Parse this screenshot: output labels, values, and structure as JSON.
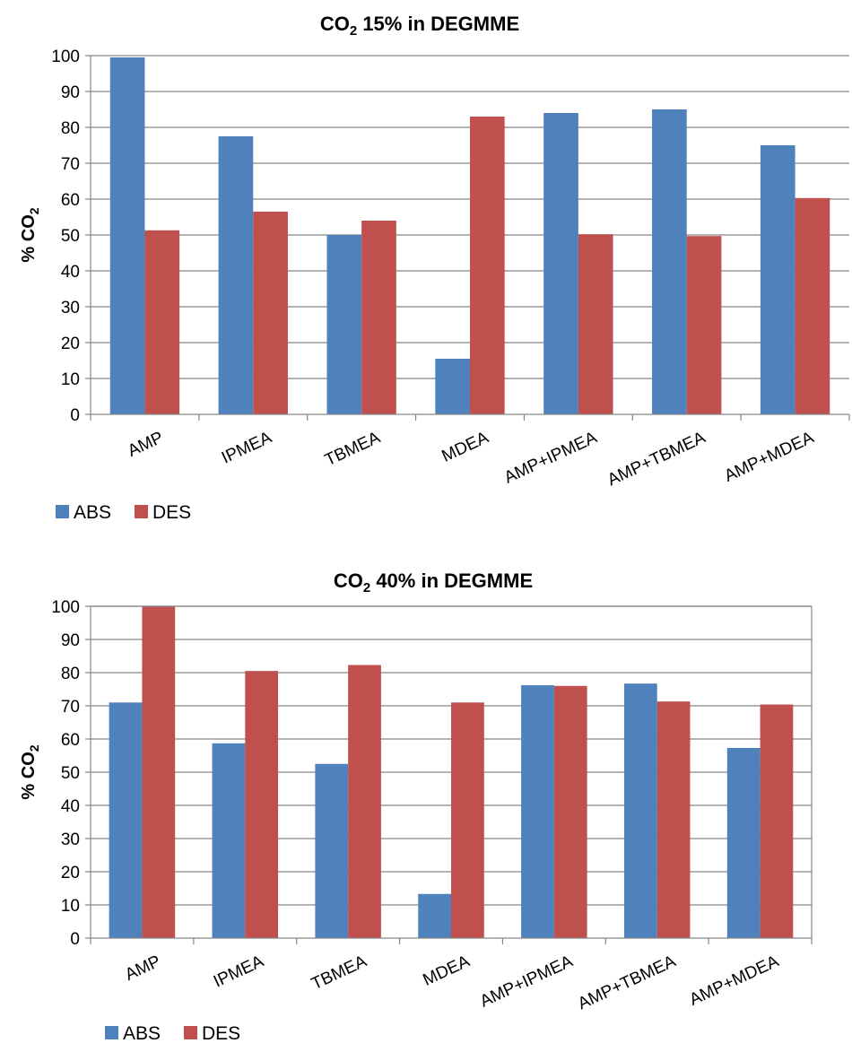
{
  "chart_data": [
    {
      "type": "bar",
      "title": {
        "prefix": "CO",
        "sub": "2",
        "suffix": " 15%  in DEGMME"
      },
      "ylabel": {
        "prefix": "% CO",
        "sub": "2"
      },
      "ylim": [
        0,
        100
      ],
      "yticks": [
        0,
        10,
        20,
        30,
        40,
        50,
        60,
        70,
        80,
        90,
        100
      ],
      "grid": true,
      "legend": "bottom-left",
      "categories": [
        "AMP",
        "IPMEA",
        "TBMEA",
        "MDEA",
        "AMP+IPMEA",
        "AMP+TBMEA",
        "AMP+MDEA"
      ],
      "series": [
        {
          "name": "ABS",
          "color": "#4f81bd",
          "values": [
            99.5,
            77.5,
            50,
            15.5,
            84,
            85,
            75
          ]
        },
        {
          "name": "DES",
          "color": "#c0504d",
          "values": [
            51.3,
            56.5,
            54,
            83,
            50.2,
            49.7,
            60.3
          ]
        }
      ]
    },
    {
      "type": "bar",
      "title": {
        "prefix": "CO",
        "sub": "2",
        "suffix": " 40%  in DEGMME"
      },
      "ylabel": {
        "prefix": "% CO",
        "sub": "2"
      },
      "ylim": [
        0,
        100
      ],
      "yticks": [
        0,
        10,
        20,
        30,
        40,
        50,
        60,
        70,
        80,
        90,
        100
      ],
      "grid": true,
      "legend": "bottom-left",
      "categories": [
        "AMP",
        "IPMEA",
        "TBMEA",
        "MDEA",
        "AMP+IPMEA",
        "AMP+TBMEA",
        "AMP+MDEA"
      ],
      "series": [
        {
          "name": "ABS",
          "color": "#4f81bd",
          "values": [
            71,
            58.7,
            52.5,
            13.3,
            76.2,
            76.7,
            57.3
          ]
        },
        {
          "name": "DES",
          "color": "#c0504d",
          "values": [
            100,
            80.5,
            82.3,
            71,
            76,
            71.3,
            70.4
          ]
        }
      ]
    }
  ]
}
